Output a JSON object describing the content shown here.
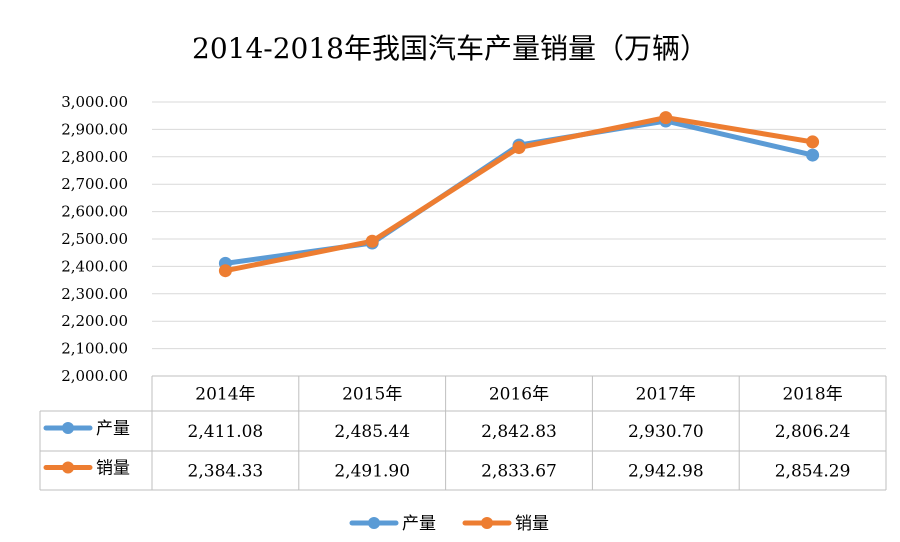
{
  "chart_data": {
    "type": "line",
    "title": "2014-2018年我国汽车产量销量（万辆）",
    "categories": [
      "2014年",
      "2015年",
      "2016年",
      "2017年",
      "2018年"
    ],
    "series": [
      {
        "name": "产量",
        "color": "#5B9BD5",
        "values": [
          2411.08,
          2485.44,
          2842.83,
          2930.7,
          2806.24
        ],
        "labels": [
          "2,411.08",
          "2,485.44",
          "2,842.83",
          "2,930.70",
          "2,806.24"
        ]
      },
      {
        "name": "销量",
        "color": "#ED7D31",
        "values": [
          2384.33,
          2491.9,
          2833.67,
          2942.98,
          2854.29
        ],
        "labels": [
          "2,384.33",
          "2,491.90",
          "2,833.67",
          "2,942.98",
          "2,854.29"
        ]
      }
    ],
    "ylim": [
      2000,
      3000
    ],
    "yticks": [
      "2,000.00",
      "2,100.00",
      "2,200.00",
      "2,300.00",
      "2,400.00",
      "2,500.00",
      "2,600.00",
      "2,700.00",
      "2,800.00",
      "2,900.00",
      "3,000.00"
    ],
    "grid": true,
    "data_table": true,
    "legend": "bottom"
  }
}
